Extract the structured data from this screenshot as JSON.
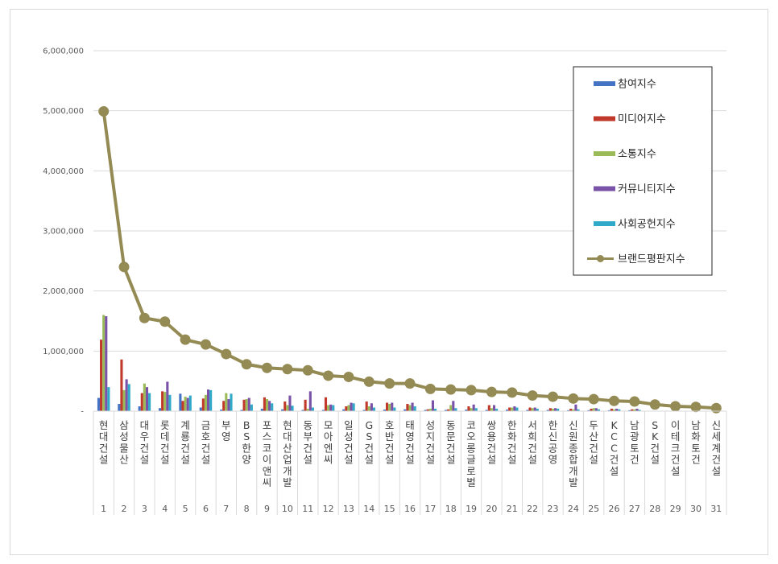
{
  "chart_data": {
    "type": "bar",
    "title": "",
    "xlabel": "",
    "ylabel": "",
    "ylim": [
      0,
      6000000
    ],
    "y_ticks": [
      "-",
      "1,000,000",
      "2,000,000",
      "3,000,000",
      "4,000,000",
      "5,000,000",
      "6,000,000"
    ],
    "grid": true,
    "legend_position": "top-right",
    "categories": [
      "현대건설",
      "삼성물산",
      "대우건설",
      "롯데건설",
      "계룡건설",
      "금호건설",
      "부영",
      "BS한양",
      "포스코이앤씨",
      "현대산업개발",
      "동부건설",
      "모아엔씨",
      "일성건설",
      "GS건설",
      "호반건설",
      "태영건설",
      "성지건설",
      "동문건설",
      "코오롱글로벌",
      "쌍용건설",
      "한화건설",
      "서희건설",
      "한신공영",
      "신원종합개발",
      "두산건설",
      "KCC건설",
      "남광토건",
      "SK건설",
      "이테크건설",
      "남화토건",
      "신세계건설"
    ],
    "rank_labels": [
      "1",
      "2",
      "3",
      "4",
      "5",
      "6",
      "7",
      "8",
      "9",
      "10",
      "11",
      "12",
      "13",
      "14",
      "15",
      "16",
      "17",
      "18",
      "19",
      "20",
      "21",
      "22",
      "23",
      "24",
      "25",
      "26",
      "27",
      "28",
      "29",
      "30",
      "31"
    ],
    "series": [
      {
        "name": "참여지수",
        "color": "#4472c4",
        "type": "bar",
        "values": [
          220000,
          120000,
          80000,
          50000,
          290000,
          60000,
          25000,
          20000,
          40000,
          30000,
          20000,
          20000,
          30000,
          20000,
          25000,
          30000,
          20000,
          20000,
          25000,
          20000,
          25000,
          20000,
          20000,
          15000,
          15000,
          15000,
          15000,
          5000,
          5000,
          5000,
          5000
        ]
      },
      {
        "name": "미디어지수",
        "color": "#c0392b",
        "type": "bar",
        "values": [
          1190000,
          860000,
          300000,
          330000,
          170000,
          210000,
          170000,
          190000,
          230000,
          160000,
          190000,
          230000,
          80000,
          160000,
          140000,
          120000,
          30000,
          30000,
          80000,
          100000,
          60000,
          60000,
          50000,
          40000,
          40000,
          40000,
          30000,
          5000,
          5000,
          5000,
          10000
        ]
      },
      {
        "name": "소통지수",
        "color": "#9bbb59",
        "type": "bar",
        "values": [
          1600000,
          350000,
          460000,
          320000,
          240000,
          270000,
          300000,
          200000,
          200000,
          100000,
          40000,
          100000,
          100000,
          80000,
          120000,
          100000,
          40000,
          100000,
          50000,
          50000,
          60000,
          50000,
          40000,
          30000,
          50000,
          30000,
          30000,
          5000,
          5000,
          5000,
          5000
        ]
      },
      {
        "name": "커뮤니티지수",
        "color": "#7a52a8",
        "type": "bar",
        "values": [
          1580000,
          530000,
          400000,
          490000,
          220000,
          360000,
          200000,
          220000,
          170000,
          260000,
          330000,
          110000,
          140000,
          130000,
          140000,
          140000,
          180000,
          170000,
          110000,
          100000,
          80000,
          60000,
          50000,
          110000,
          50000,
          40000,
          40000,
          5000,
          5000,
          5000,
          5000
        ]
      },
      {
        "name": "사회공헌지수",
        "color": "#31a9c9",
        "type": "bar",
        "values": [
          400000,
          450000,
          300000,
          270000,
          260000,
          350000,
          290000,
          110000,
          130000,
          90000,
          60000,
          100000,
          130000,
          60000,
          60000,
          80000,
          40000,
          50000,
          50000,
          40000,
          60000,
          40000,
          40000,
          30000,
          30000,
          30000,
          20000,
          5000,
          5000,
          5000,
          5000
        ]
      },
      {
        "name": "브랜드평판지수",
        "color": "#948a54",
        "type": "line",
        "values": [
          4990000,
          2400000,
          1550000,
          1490000,
          1190000,
          1110000,
          950000,
          780000,
          720000,
          700000,
          680000,
          590000,
          570000,
          490000,
          460000,
          460000,
          370000,
          360000,
          350000,
          320000,
          310000,
          260000,
          240000,
          210000,
          200000,
          170000,
          160000,
          110000,
          80000,
          70000,
          50000
        ]
      }
    ]
  }
}
